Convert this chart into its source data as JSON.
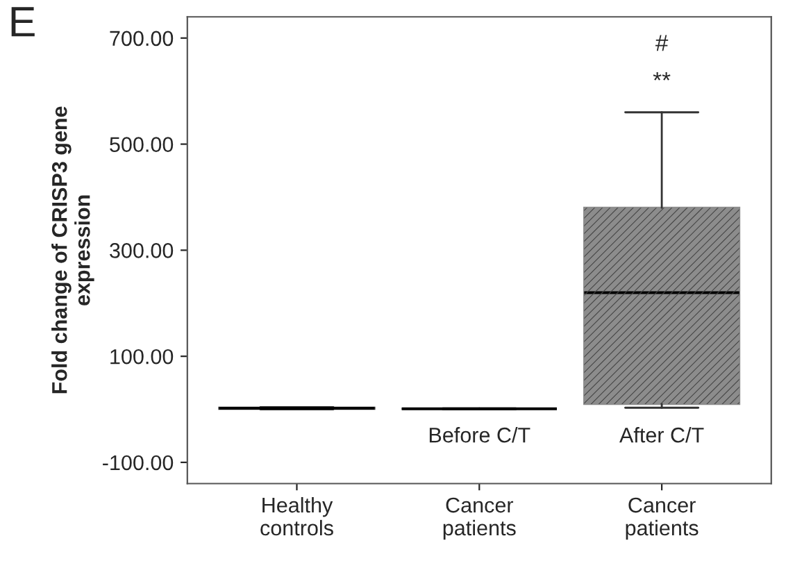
{
  "chart_data": {
    "type": "box",
    "ylabel": "Fold change of CRISP3 gene\nexpression",
    "categories": [
      "Healthy\ncontrols",
      "Cancer\npatients",
      "Cancer\npatients"
    ],
    "boxes": [
      {
        "low": 0,
        "q1": 1,
        "median": 2,
        "q3": 3,
        "high": 4
      },
      {
        "low": 0,
        "q1": 1,
        "median": 1,
        "q3": 1,
        "high": 2
      },
      {
        "low": 3,
        "q1": 10,
        "median": 220,
        "q3": 380,
        "high": 560
      }
    ],
    "colors": [
      "#333333",
      "#333333",
      "#8c8c8c"
    ],
    "ylim": [
      -140,
      740
    ],
    "yticks": [
      {
        "value": -100,
        "label": "-100.00"
      },
      {
        "value": 100,
        "label": "100.00"
      },
      {
        "value": 300,
        "label": "300.00"
      },
      {
        "value": 500,
        "label": "500.00"
      },
      {
        "value": 700,
        "label": "700.00"
      }
    ],
    "grid": false,
    "annotations": [
      "E",
      "Before C/T",
      "After C/T",
      "**",
      "#"
    ]
  }
}
